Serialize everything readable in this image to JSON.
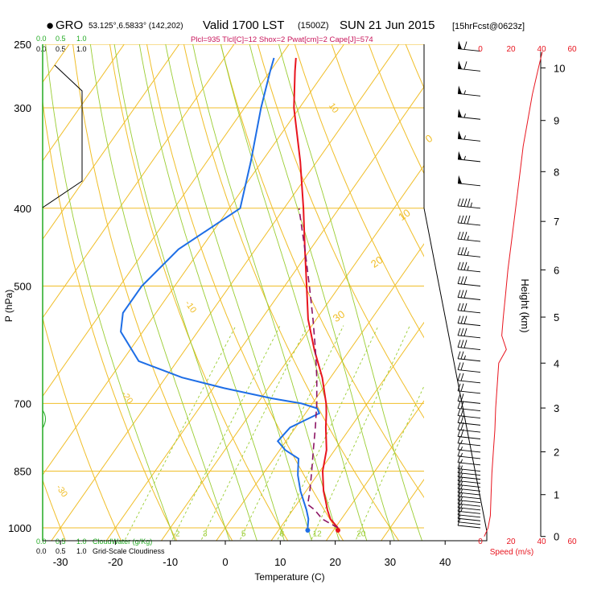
{
  "header": {
    "station_marker": "●",
    "station_code": "GRO",
    "station_coords": "53.125°,6.5833° (142,202)",
    "valid_main": "Valid 1700 LST",
    "valid_utc": "(1500Z)",
    "valid_date": "SUN 21 Jun 2015",
    "forecast": "[15hrFcst@0623z]",
    "indices": "Plcl=935 Tlcl[C]=12 Shox=2 Pwat[cm]=2 Cape[J]=574"
  },
  "cloud_scales": {
    "cloudwater_ticks": [
      "0.0",
      "0.5",
      "1.0"
    ],
    "cloudwater_label": "CloudWater (g/Kg)",
    "gridscale_ticks": [
      "0.0",
      "0.5",
      "1.0"
    ],
    "gridscale_label": "Grid-Scale Cloudiness"
  },
  "colors": {
    "isotherm": "#f0be28",
    "dry_adiabat": "#f0be28",
    "moist_adiabat": "#9acd32",
    "mixing_ratio": "#9acd32",
    "temperature": "#e8141e",
    "dewpoint": "#1e6ee6",
    "parcel": "#8c1464",
    "indices": "#c8145a",
    "speed": "#e8141e",
    "cloudwater": "#22aa22"
  },
  "chart_data": {
    "type": "line",
    "diagram": "skew-T log-p",
    "xlabel": "Temperature (C)",
    "ylabel": "P (hPa)",
    "x_ticks": [
      -30,
      -20,
      -10,
      0,
      10,
      20,
      30,
      40
    ],
    "y_ticks": [
      250,
      300,
      400,
      500,
      700,
      850,
      1000
    ],
    "xlim_at_1000hPa": [
      -35,
      40
    ],
    "ylim": [
      1050,
      250
    ],
    "isotherm_labels": [
      {
        "text": "10",
        "p": 298,
        "t": -35
      },
      {
        "text": "-10",
        "p": 525,
        "t": -36
      },
      {
        "text": "-20",
        "p": 681,
        "t": -36
      },
      {
        "text": "-30",
        "p": 890,
        "t": -36
      }
    ],
    "dry_adiabat_labels": [
      {
        "text": "0",
        "p": 332,
        "t": -12
      },
      {
        "text": "10",
        "p": 415,
        "t": -7
      },
      {
        "text": "20",
        "p": 475,
        "t": -6
      },
      {
        "text": "30",
        "p": 555,
        "t": -6
      }
    ],
    "mixing_ratio_labels": [
      {
        "text": "2",
        "p": 1025,
        "t": -8
      },
      {
        "text": "3",
        "p": 1025,
        "t": -3
      },
      {
        "text": "5",
        "p": 1025,
        "t": 4
      },
      {
        "text": "8",
        "p": 1025,
        "t": 11
      },
      {
        "text": "12",
        "p": 1025,
        "t": 17
      },
      {
        "text": "20",
        "p": 1025,
        "t": 25
      }
    ],
    "series": [
      {
        "name": "Temperature",
        "points": [
          {
            "p": 1000,
            "t": 20.5
          },
          {
            "p": 975,
            "t": 18
          },
          {
            "p": 950,
            "t": 16.3
          },
          {
            "p": 925,
            "t": 14.8
          },
          {
            "p": 900,
            "t": 13.2
          },
          {
            "p": 850,
            "t": 10.5
          },
          {
            "p": 800,
            "t": 8.5
          },
          {
            "p": 750,
            "t": 5.5
          },
          {
            "p": 720,
            "t": 3.8
          },
          {
            "p": 700,
            "t": 2.5
          },
          {
            "p": 650,
            "t": -1.5
          },
          {
            "p": 600,
            "t": -6.5
          },
          {
            "p": 550,
            "t": -11.5
          },
          {
            "p": 500,
            "t": -16
          },
          {
            "p": 450,
            "t": -21
          },
          {
            "p": 400,
            "t": -26.5
          },
          {
            "p": 350,
            "t": -33
          },
          {
            "p": 300,
            "t": -41
          },
          {
            "p": 270,
            "t": -45.5
          },
          {
            "p": 260,
            "t": -47
          }
        ]
      },
      {
        "name": "Dewpoint",
        "points": [
          {
            "p": 1000,
            "t": 15
          },
          {
            "p": 975,
            "t": 14
          },
          {
            "p": 950,
            "t": 12.5
          },
          {
            "p": 900,
            "t": 9
          },
          {
            "p": 860,
            "t": 6.5
          },
          {
            "p": 850,
            "t": 6
          },
          {
            "p": 820,
            "t": 4.5
          },
          {
            "p": 800,
            "t": 1
          },
          {
            "p": 780,
            "t": -1.5
          },
          {
            "p": 750,
            "t": -1
          },
          {
            "p": 720,
            "t": 2.5
          },
          {
            "p": 710,
            "t": 1.5
          },
          {
            "p": 700,
            "t": -2
          },
          {
            "p": 690,
            "t": -8
          },
          {
            "p": 670,
            "t": -18
          },
          {
            "p": 650,
            "t": -27
          },
          {
            "p": 620,
            "t": -37
          },
          {
            "p": 570,
            "t": -44
          },
          {
            "p": 540,
            "t": -46
          },
          {
            "p": 500,
            "t": -46
          },
          {
            "p": 450,
            "t": -44
          },
          {
            "p": 400,
            "t": -38
          },
          {
            "p": 350,
            "t": -42
          },
          {
            "p": 300,
            "t": -47
          },
          {
            "p": 270,
            "t": -50
          },
          {
            "p": 260,
            "t": -51
          }
        ]
      },
      {
        "name": "Parcel",
        "points": [
          {
            "p": 1000,
            "t": 20.5
          },
          {
            "p": 975,
            "t": 16.5
          },
          {
            "p": 950,
            "t": 14
          },
          {
            "p": 935,
            "t": 12
          },
          {
            "p": 900,
            "t": 10.7
          },
          {
            "p": 850,
            "t": 8.5
          },
          {
            "p": 800,
            "t": 6.1
          },
          {
            "p": 750,
            "t": 3.6
          },
          {
            "p": 700,
            "t": 0.8
          },
          {
            "p": 650,
            "t": -2.5
          },
          {
            "p": 600,
            "t": -6.3
          },
          {
            "p": 550,
            "t": -10.6
          },
          {
            "p": 500,
            "t": -15.5
          },
          {
            "p": 450,
            "t": -21
          },
          {
            "p": 400,
            "t": -27.3
          }
        ]
      }
    ],
    "surface_markers": [
      {
        "name": "surface temperature",
        "p": 1000,
        "t": 20.5
      },
      {
        "name": "surface dewpoint",
        "p": 1000,
        "t": 15
      }
    ],
    "height_axis": {
      "label": "Height (km)",
      "ticks": [
        0,
        1,
        2,
        3,
        4,
        5,
        6,
        7,
        8,
        9,
        10
      ]
    },
    "speed_axis": {
      "label": "Speed (m/s)",
      "ticks": [
        0,
        20,
        40,
        60
      ],
      "profile_km_ms": [
        [
          0,
          2.5
        ],
        [
          0.2,
          5
        ],
        [
          0.5,
          6.5
        ],
        [
          1,
          7
        ],
        [
          1.5,
          7.5
        ],
        [
          2,
          8.5
        ],
        [
          2.5,
          9.5
        ],
        [
          3,
          10
        ],
        [
          3.5,
          11
        ],
        [
          4,
          12
        ],
        [
          4.3,
          17
        ],
        [
          4.6,
          14
        ],
        [
          5,
          15
        ],
        [
          5.5,
          16.5
        ],
        [
          6,
          18
        ],
        [
          6.5,
          20
        ],
        [
          7,
          22
        ],
        [
          7.5,
          24
        ],
        [
          8,
          26
        ],
        [
          8.5,
          28
        ],
        [
          9,
          31
        ],
        [
          9.5,
          34
        ],
        [
          10,
          38
        ],
        [
          10.3,
          40.5
        ]
      ]
    },
    "wind_barbs": [
      {
        "p": 1000,
        "knots": 10
      },
      {
        "p": 990,
        "knots": 10
      },
      {
        "p": 980,
        "knots": 10
      },
      {
        "p": 970,
        "knots": 10
      },
      {
        "p": 960,
        "knots": 15
      },
      {
        "p": 950,
        "knots": 15
      },
      {
        "p": 940,
        "knots": 15
      },
      {
        "p": 930,
        "knots": 15
      },
      {
        "p": 920,
        "knots": 15
      },
      {
        "p": 910,
        "knots": 15
      },
      {
        "p": 900,
        "knots": 15
      },
      {
        "p": 890,
        "knots": 15
      },
      {
        "p": 880,
        "knots": 15
      },
      {
        "p": 870,
        "knots": 15
      },
      {
        "p": 860,
        "knots": 15
      },
      {
        "p": 850,
        "knots": 15
      },
      {
        "p": 835,
        "knots": 15
      },
      {
        "p": 820,
        "knots": 15
      },
      {
        "p": 805,
        "knots": 15
      },
      {
        "p": 790,
        "knots": 15
      },
      {
        "p": 775,
        "knots": 20
      },
      {
        "p": 760,
        "knots": 20
      },
      {
        "p": 745,
        "knots": 20
      },
      {
        "p": 730,
        "knots": 20
      },
      {
        "p": 715,
        "knots": 20
      },
      {
        "p": 700,
        "knots": 20
      },
      {
        "p": 680,
        "knots": 20
      },
      {
        "p": 660,
        "knots": 20
      },
      {
        "p": 640,
        "knots": 20
      },
      {
        "p": 620,
        "knots": 25
      },
      {
        "p": 600,
        "knots": 30
      },
      {
        "p": 580,
        "knots": 30
      },
      {
        "p": 560,
        "knots": 30
      },
      {
        "p": 540,
        "knots": 30
      },
      {
        "p": 520,
        "knots": 30
      },
      {
        "p": 500,
        "knots": 30
      },
      {
        "p": 480,
        "knots": 35
      },
      {
        "p": 460,
        "knots": 35
      },
      {
        "p": 440,
        "knots": 35
      },
      {
        "p": 420,
        "knots": 40
      },
      {
        "p": 400,
        "knots": 45
      },
      {
        "p": 375,
        "knots": 50
      },
      {
        "p": 350,
        "knots": 55
      },
      {
        "p": 330,
        "knots": 55
      },
      {
        "p": 310,
        "knots": 55
      },
      {
        "p": 290,
        "knots": 55
      },
      {
        "p": 270,
        "knots": 60
      },
      {
        "p": 255,
        "knots": 60
      }
    ]
  }
}
